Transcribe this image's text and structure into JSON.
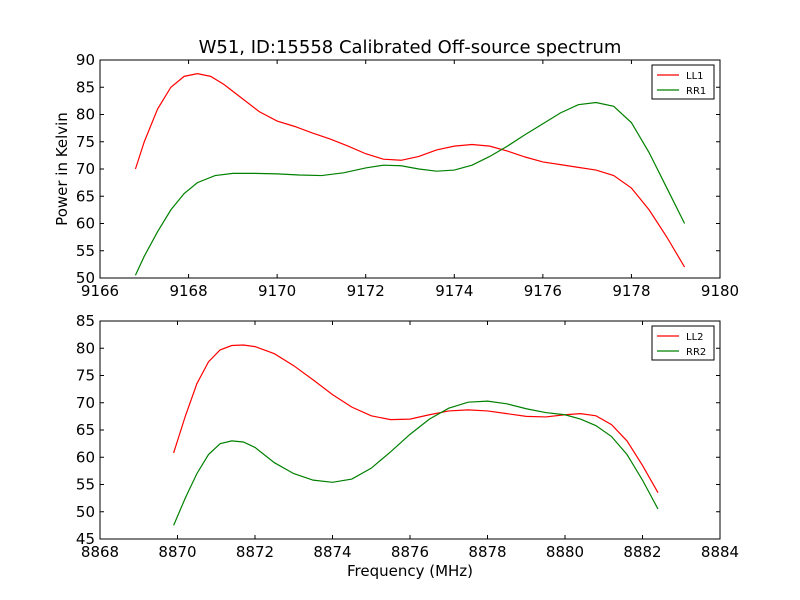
{
  "figure": {
    "title": "W51, ID:15558 Calibrated Off-source spectrum",
    "xlabel": "Frequency (MHz)"
  },
  "chart_data": [
    {
      "type": "line",
      "title": "W51, ID:15558 Calibrated Off-source spectrum",
      "xlabel": "",
      "ylabel": "Power in Kelvin",
      "xlim": [
        9166,
        9180
      ],
      "ylim": [
        50,
        90
      ],
      "xticks": [
        "9166",
        "9168",
        "9170",
        "9172",
        "9174",
        "9176",
        "9178",
        "9180"
      ],
      "yticks": [
        "50",
        "55",
        "60",
        "65",
        "70",
        "75",
        "80",
        "85",
        "90"
      ],
      "legend_position": "top-right",
      "grid": false,
      "series": [
        {
          "name": "LL1",
          "color": "#ff0000",
          "x": [
            9166.8,
            9167.0,
            9167.3,
            9167.6,
            9167.9,
            9168.2,
            9168.5,
            9168.8,
            9169.2,
            9169.6,
            9170.0,
            9170.4,
            9170.8,
            9171.2,
            9171.6,
            9172.0,
            9172.4,
            9172.8,
            9173.2,
            9173.6,
            9174.0,
            9174.4,
            9174.8,
            9175.2,
            9175.6,
            9176.0,
            9176.4,
            9176.8,
            9177.2,
            9177.6,
            9178.0,
            9178.4,
            9178.8,
            9179.2
          ],
          "y": [
            70.0,
            75.0,
            81.0,
            85.0,
            87.0,
            87.5,
            87.0,
            85.5,
            83.0,
            80.5,
            78.8,
            77.8,
            76.6,
            75.5,
            74.2,
            72.8,
            71.8,
            71.6,
            72.3,
            73.5,
            74.2,
            74.5,
            74.2,
            73.3,
            72.2,
            71.3,
            70.8,
            70.3,
            69.8,
            68.8,
            66.5,
            62.5,
            57.5,
            52.0
          ]
        },
        {
          "name": "RR1",
          "color": "#008000",
          "x": [
            9166.8,
            9167.0,
            9167.3,
            9167.6,
            9167.9,
            9168.2,
            9168.6,
            9169.0,
            9169.5,
            9170.0,
            9170.5,
            9171.0,
            9171.5,
            9172.0,
            9172.4,
            9172.8,
            9173.2,
            9173.6,
            9174.0,
            9174.4,
            9174.8,
            9175.2,
            9175.6,
            9176.0,
            9176.4,
            9176.8,
            9177.2,
            9177.6,
            9178.0,
            9178.4,
            9178.8,
            9179.2
          ],
          "y": [
            50.5,
            54.0,
            58.5,
            62.5,
            65.5,
            67.5,
            68.8,
            69.2,
            69.2,
            69.1,
            68.9,
            68.8,
            69.3,
            70.2,
            70.7,
            70.6,
            70.0,
            69.6,
            69.8,
            70.7,
            72.3,
            74.2,
            76.3,
            78.3,
            80.3,
            81.8,
            82.2,
            81.5,
            78.5,
            73.0,
            66.5,
            60.0
          ]
        }
      ]
    },
    {
      "type": "line",
      "title": "",
      "xlabel": "Frequency (MHz)",
      "ylabel": "",
      "xlim": [
        8868,
        8884
      ],
      "ylim": [
        45,
        85
      ],
      "xticks": [
        "8868",
        "8870",
        "8872",
        "8874",
        "8876",
        "8878",
        "8880",
        "8882",
        "8884"
      ],
      "yticks": [
        "45",
        "50",
        "55",
        "60",
        "65",
        "70",
        "75",
        "80",
        "85"
      ],
      "legend_position": "top-right",
      "grid": false,
      "series": [
        {
          "name": "LL2",
          "color": "#ff0000",
          "x": [
            8869.9,
            8870.2,
            8870.5,
            8870.8,
            8871.1,
            8871.4,
            8871.7,
            8872.0,
            8872.5,
            8873.0,
            8873.5,
            8874.0,
            8874.5,
            8875.0,
            8875.5,
            8876.0,
            8876.5,
            8877.0,
            8877.5,
            8878.0,
            8878.5,
            8879.0,
            8879.5,
            8880.0,
            8880.4,
            8880.8,
            8881.2,
            8881.6,
            8882.0,
            8882.4
          ],
          "y": [
            60.8,
            67.5,
            73.5,
            77.5,
            79.7,
            80.5,
            80.6,
            80.3,
            79.0,
            76.8,
            74.2,
            71.5,
            69.2,
            67.6,
            66.9,
            67.0,
            67.8,
            68.5,
            68.7,
            68.5,
            68.0,
            67.5,
            67.4,
            67.8,
            68.0,
            67.6,
            66.0,
            63.0,
            58.5,
            53.5
          ]
        },
        {
          "name": "RR2",
          "color": "#008000",
          "x": [
            8869.9,
            8870.2,
            8870.5,
            8870.8,
            8871.1,
            8871.4,
            8871.7,
            8872.0,
            8872.5,
            8873.0,
            8873.5,
            8874.0,
            8874.5,
            8875.0,
            8875.5,
            8876.0,
            8876.5,
            8877.0,
            8877.5,
            8878.0,
            8878.5,
            8879.0,
            8879.5,
            8880.0,
            8880.4,
            8880.8,
            8881.2,
            8881.6,
            8882.0,
            8882.4
          ],
          "y": [
            47.5,
            52.5,
            57.0,
            60.5,
            62.5,
            63.0,
            62.8,
            61.8,
            59.0,
            57.0,
            55.8,
            55.4,
            56.0,
            58.0,
            61.0,
            64.2,
            67.0,
            69.0,
            70.1,
            70.3,
            69.8,
            68.9,
            68.2,
            67.8,
            67.0,
            65.8,
            63.8,
            60.5,
            55.8,
            50.5
          ]
        }
      ]
    }
  ]
}
